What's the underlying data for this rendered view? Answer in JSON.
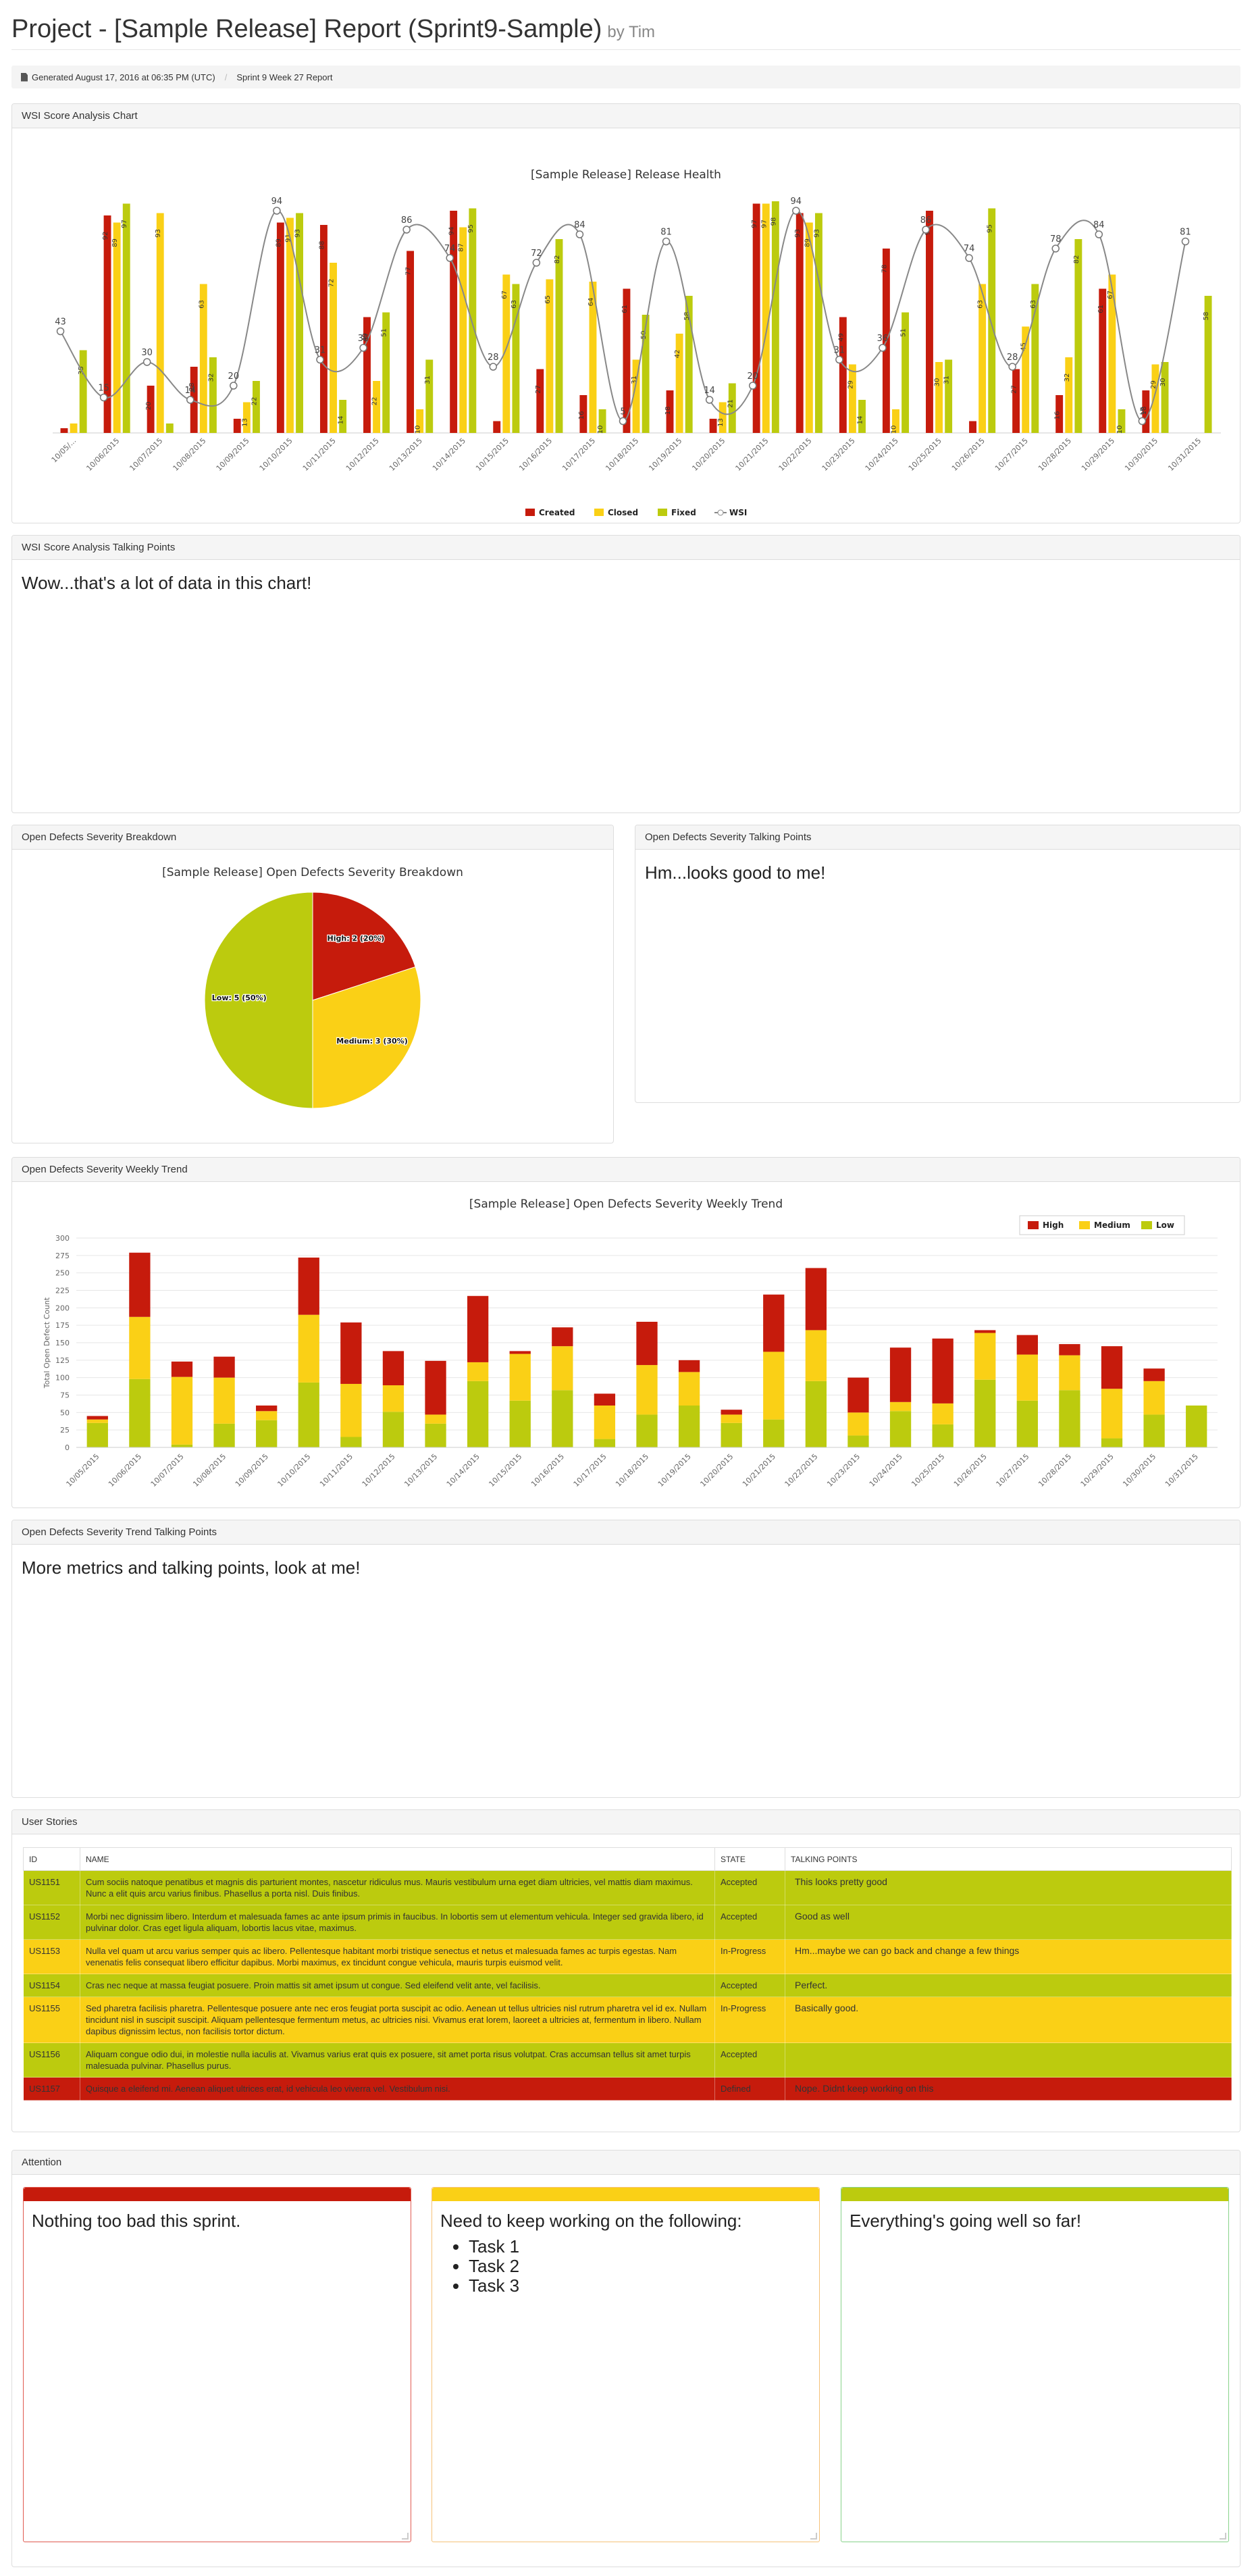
{
  "header": {
    "title": "Project - [Sample Release] Report (Sprint9-Sample)",
    "byline": "by Tim"
  },
  "infobar": {
    "generated": "Generated August 17, 2016 at 06:35 PM (UTC)",
    "sprint": "Sprint 9 Week 27 Report"
  },
  "colors": {
    "created": "#c61b0c",
    "closed": "#fad016",
    "fixed": "#bccb0e",
    "wsi": "#888888",
    "high": "#c61b0c",
    "medium": "#fad016",
    "low": "#bccb0e"
  },
  "panels": {
    "wsi_chart": "WSI Score Analysis Chart",
    "wsi_talking": "WSI Score Analysis Talking Points",
    "severity_breakdown": "Open Defects Severity Breakdown",
    "severity_talking": "Open Defects Severity Talking Points",
    "weekly_trend": "Open Defects Severity Weekly Trend",
    "trend_talking": "Open Defects Severity Trend Talking Points",
    "user_stories": "User Stories",
    "attention": "Attention"
  },
  "talking_points": {
    "wsi": "Wow...that's a lot of data in this chart!",
    "severity": "Hm...looks good to me!",
    "trend": "More metrics and talking points, look at me!"
  },
  "chart_data": [
    {
      "type": "bar",
      "title": "[Sample Release] Release Health",
      "categories": [
        "10/05/...",
        "10/06/2015",
        "10/07/2015",
        "10/08/2015",
        "10/09/2015",
        "10/10/2015",
        "10/11/2015",
        "10/12/2015",
        "10/13/2015",
        "10/14/2015",
        "10/15/2015",
        "10/16/2015",
        "10/17/2015",
        "10/18/2015",
        "10/19/2015",
        "10/20/2015",
        "10/21/2015",
        "10/22/2015",
        "10/23/2015",
        "10/24/2015",
        "10/25/2015",
        "10/26/2015",
        "10/27/2015",
        "10/28/2015",
        "10/29/2015",
        "10/30/2015",
        "10/31/2015"
      ],
      "series": [
        {
          "name": "Created",
          "values": [
            2,
            92,
            20,
            28,
            6,
            89,
            88,
            49,
            77,
            94,
            5,
            27,
            16,
            61,
            18,
            6,
            97,
            93,
            49,
            78,
            94,
            5,
            27,
            16,
            61,
            18,
            0
          ]
        },
        {
          "name": "Closed",
          "values": [
            4,
            89,
            93,
            63,
            13,
            91,
            72,
            22,
            10,
            87,
            67,
            65,
            64,
            31,
            42,
            13,
            97,
            89,
            29,
            10,
            30,
            63,
            45,
            32,
            67,
            29,
            0
          ]
        },
        {
          "name": "Fixed",
          "values": [
            35,
            97,
            4,
            32,
            22,
            93,
            14,
            51,
            31,
            95,
            63,
            82,
            10,
            50,
            58,
            21,
            98,
            93,
            14,
            51,
            31,
            95,
            63,
            82,
            10,
            30,
            58
          ]
        },
        {
          "name": "WSI",
          "values": [
            43,
            15,
            30,
            14,
            20,
            94,
            31,
            36,
            86,
            74,
            28,
            72,
            84,
            5,
            81,
            14,
            20,
            94,
            31,
            36,
            86,
            74,
            28,
            78,
            84,
            5,
            81
          ]
        }
      ],
      "ylim": [
        0,
        100
      ]
    },
    {
      "type": "pie",
      "title": "[Sample Release] Open Defects Severity Breakdown",
      "slices": [
        {
          "name": "High",
          "value": 2,
          "percent": 20,
          "label": "High: 2 (20%)"
        },
        {
          "name": "Medium",
          "value": 3,
          "percent": 30,
          "label": "Medium: 3 (30%)"
        },
        {
          "name": "Low",
          "value": 5,
          "percent": 50,
          "label": "Low: 5 (50%)"
        }
      ]
    },
    {
      "type": "bar",
      "stacked": true,
      "title": "[Sample Release] Open Defects Severity Weekly Trend",
      "ylabel": "Total Open Defect Count",
      "ylim": [
        0,
        300
      ],
      "yticks": [
        0,
        25,
        50,
        75,
        100,
        125,
        150,
        175,
        200,
        225,
        250,
        275,
        300
      ],
      "legend": "top-right",
      "categories": [
        "10/05/2015",
        "10/06/2015",
        "10/07/2015",
        "10/08/2015",
        "10/09/2015",
        "10/10/2015",
        "10/11/2015",
        "10/12/2015",
        "10/13/2015",
        "10/14/2015",
        "10/15/2015",
        "10/16/2015",
        "10/17/2015",
        "10/18/2015",
        "10/19/2015",
        "10/20/2015",
        "10/21/2015",
        "10/22/2015",
        "10/23/2015",
        "10/24/2015",
        "10/25/2015",
        "10/26/2015",
        "10/27/2015",
        "10/28/2015",
        "10/29/2015",
        "10/30/2015",
        "10/31/2015"
      ],
      "series": [
        {
          "name": "High",
          "values": [
            5,
            92,
            22,
            30,
            8,
            82,
            88,
            49,
            77,
            95,
            4,
            27,
            17,
            62,
            17,
            7,
            82,
            89,
            50,
            78,
            93,
            4,
            28,
            16,
            61,
            18,
            0
          ]
        },
        {
          "name": "Medium",
          "values": [
            5,
            89,
            97,
            66,
            13,
            97,
            76,
            38,
            13,
            27,
            67,
            63,
            48,
            71,
            48,
            12,
            97,
            73,
            33,
            13,
            30,
            67,
            66,
            50,
            71,
            48,
            0
          ]
        },
        {
          "name": "Low",
          "values": [
            35,
            98,
            4,
            34,
            39,
            93,
            15,
            51,
            34,
            95,
            67,
            82,
            12,
            47,
            60,
            35,
            40,
            95,
            17,
            52,
            33,
            97,
            67,
            82,
            13,
            47,
            60
          ]
        }
      ]
    }
  ],
  "stories": {
    "columns": [
      "ID",
      "NAME",
      "STATE",
      "TALKING POINTS"
    ],
    "rows": [
      {
        "id": "US1151",
        "name": "Cum sociis natoque penatibus et magnis dis parturient montes, nascetur ridiculus mus. Mauris vestibulum urna eget diam ultricies, vel mattis diam maximus. Nunc a elit quis arcu varius finibus. Phasellus a porta nisl. Duis finibus.",
        "state": "Accepted",
        "tp": "This looks pretty good",
        "color": "#bccb0e"
      },
      {
        "id": "US1152",
        "name": "Morbi nec dignissim libero. Interdum et malesuada fames ac ante ipsum primis in faucibus. In lobortis sem ut elementum vehicula. Integer sed gravida libero, id pulvinar dolor. Cras eget ligula aliquam, lobortis lacus vitae, maximus.",
        "state": "Accepted",
        "tp": "Good as well",
        "color": "#bccb0e"
      },
      {
        "id": "US1153",
        "name": "Nulla vel quam ut arcu varius semper quis ac libero. Pellentesque habitant morbi tristique senectus et netus et malesuada fames ac turpis egestas. Nam venenatis felis consequat libero efficitur dapibus. Morbi maximus, ex tincidunt congue vehicula, mauris turpis euismod velit.",
        "state": "In-Progress",
        "tp": "Hm...maybe we can go back and change a few things",
        "color": "#fad016"
      },
      {
        "id": "US1154",
        "name": "Cras nec neque at massa feugiat posuere. Proin mattis sit amet ipsum ut congue. Sed eleifend velit ante, vel facilisis.",
        "state": "Accepted",
        "tp": "Perfect.",
        "color": "#bccb0e"
      },
      {
        "id": "US1155",
        "name": "Sed pharetra facilisis pharetra. Pellentesque posuere ante nec eros feugiat porta suscipit ac odio. Aenean ut tellus ultricies nisl rutrum pharetra vel id ex. Nullam tincidunt nisl in suscipit suscipit. Aliquam pellentesque fermentum metus, ac ultricies nisi. Vivamus erat lorem, laoreet a ultricies at, fermentum in libero. Nullam dapibus dignissim lectus, non facilisis tortor dictum.",
        "state": "In-Progress",
        "tp": "Basically good.",
        "color": "#fad016"
      },
      {
        "id": "US1156",
        "name": "Aliquam congue odio dui, in molestie nulla iaculis at. Vivamus varius erat quis ex posuere, sit amet porta risus volutpat. Cras accumsan tellus sit amet turpis malesuada pulvinar. Phasellus purus.",
        "state": "Accepted",
        "tp": "",
        "color": "#bccb0e"
      },
      {
        "id": "US1157",
        "name": "Quisque a eleifend mi. Aenean aliquet ultrices erat, id vehicula leo viverra vel. Vestibulum nisi.",
        "state": "Defined",
        "tp": "Nope. Didnt keep working on this",
        "color": "#c61b0c"
      }
    ]
  },
  "attention": [
    {
      "color": "#c61b0c",
      "border": "#e05a50",
      "text": "Nothing too bad this sprint.",
      "items": []
    },
    {
      "color": "#fad016",
      "border": "#f5c27a",
      "text": "Need to keep working on the following:",
      "items": [
        "Task 1",
        "Task 2",
        "Task 3"
      ]
    },
    {
      "color": "#bccb0e",
      "border": "#87d28a",
      "text": "Everything's going well so far!",
      "items": []
    }
  ]
}
